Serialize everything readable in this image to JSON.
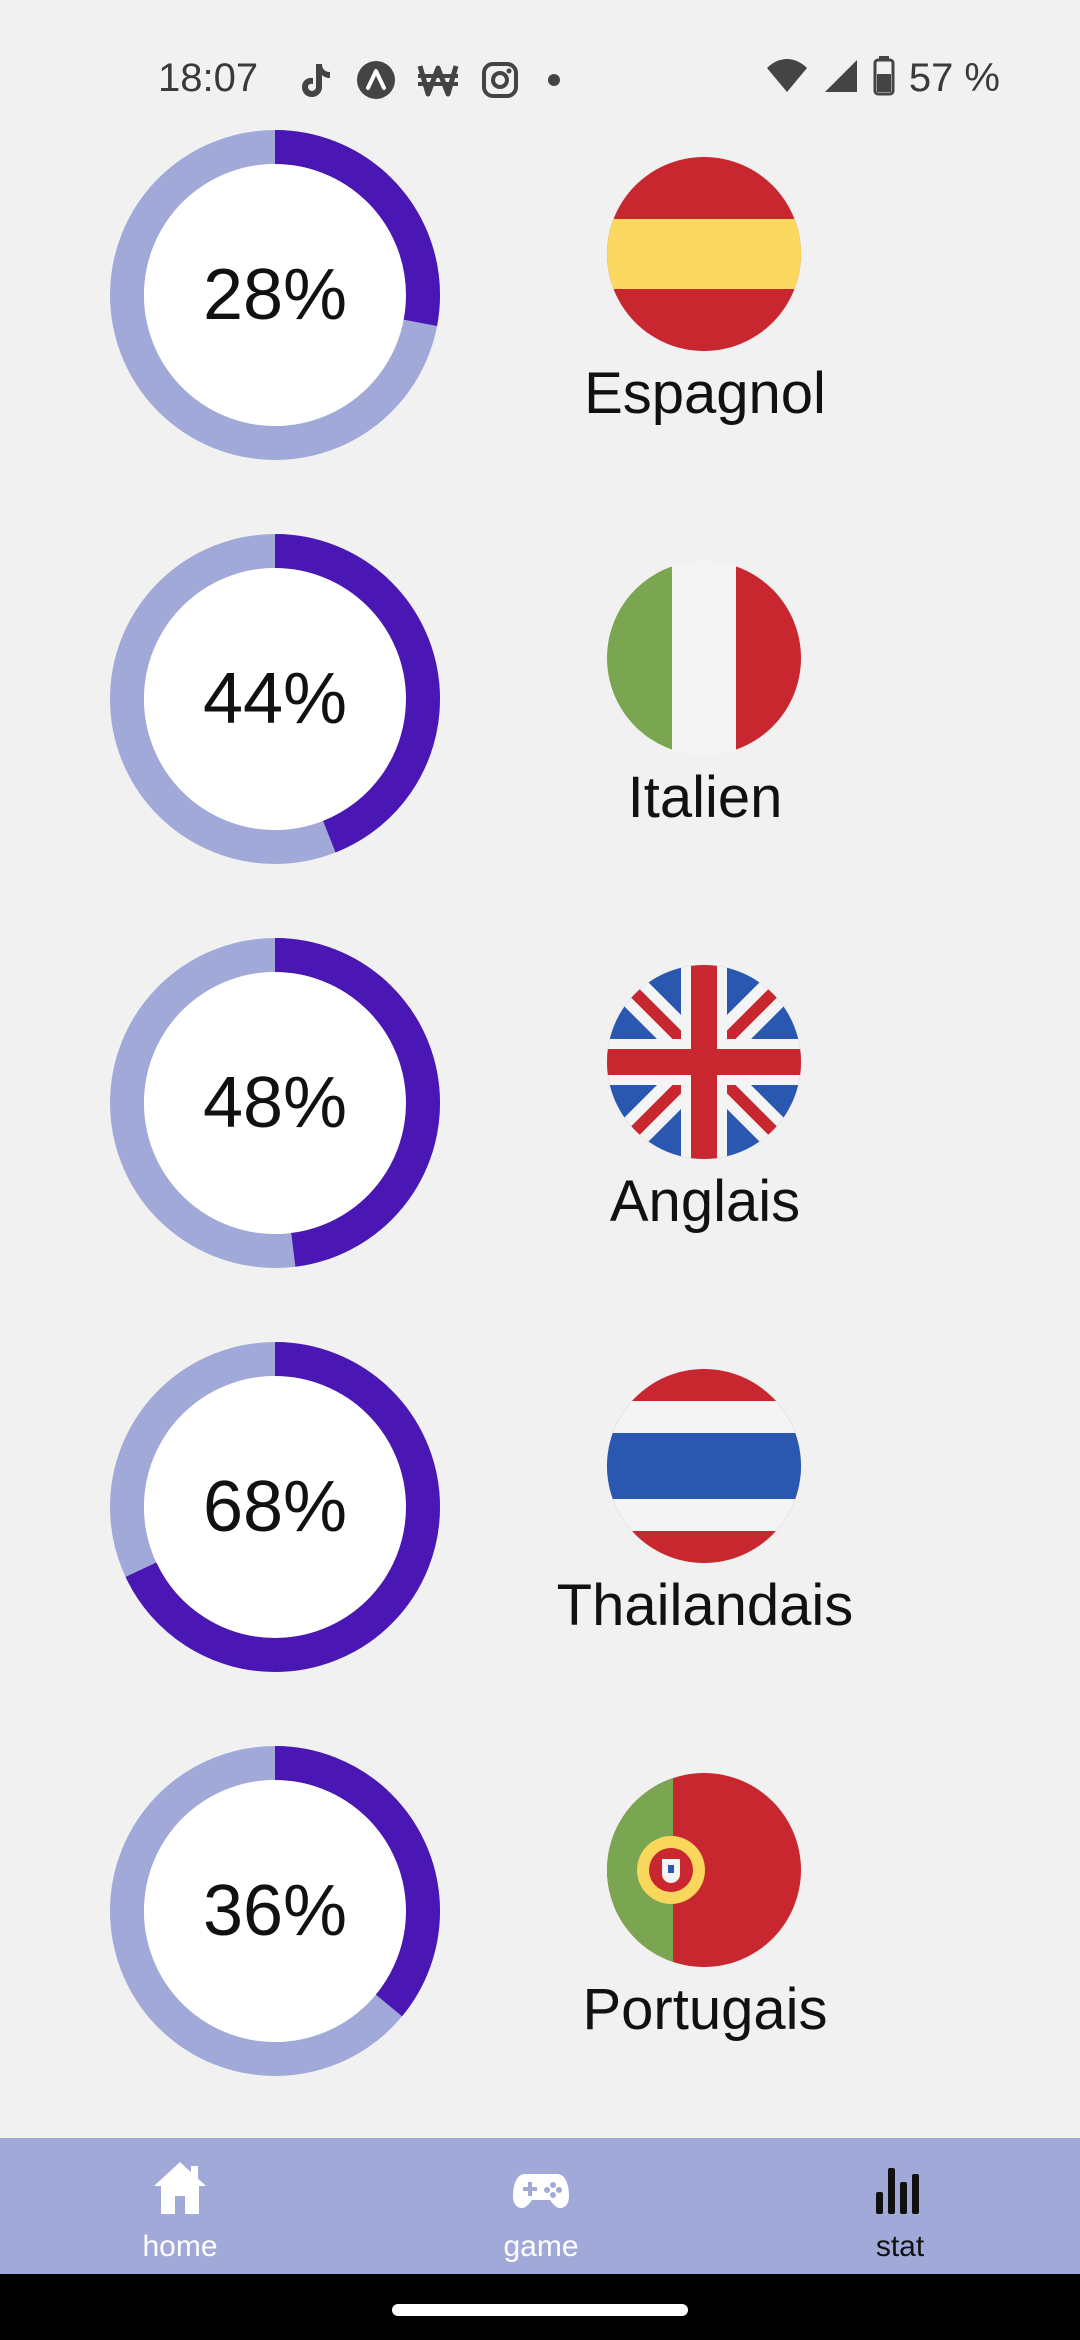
{
  "status_bar": {
    "time": "18:07",
    "left_icons": [
      "tiktok-icon",
      "arc-icon",
      "won-icon",
      "instagram-icon"
    ],
    "battery": "57 %"
  },
  "colors": {
    "ring_track": "#a1a9d8",
    "ring_progress": "#4a17b5",
    "nav_bg": "#a1a9d8"
  },
  "languages": [
    {
      "percent_label": "28%",
      "progress": 0.28,
      "name": "Espagnol",
      "flag": "spain-flag-icon"
    },
    {
      "percent_label": "44%",
      "progress": 0.44,
      "name": "Italien",
      "flag": "italy-flag-icon"
    },
    {
      "percent_label": "48%",
      "progress": 0.48,
      "name": "Anglais",
      "flag": "uk-flag-icon"
    },
    {
      "percent_label": "68%",
      "progress": 0.68,
      "name": "Thailandais",
      "flag": "thailand-flag-icon"
    },
    {
      "percent_label": "36%",
      "progress": 0.36,
      "name": "Portugais",
      "flag": "portugal-flag-icon"
    }
  ],
  "nav": {
    "home": {
      "label": "home",
      "icon": "home-icon"
    },
    "game": {
      "label": "game",
      "icon": "gamepad-icon"
    },
    "stat": {
      "label": "stat",
      "icon": "bar-chart-icon"
    }
  }
}
